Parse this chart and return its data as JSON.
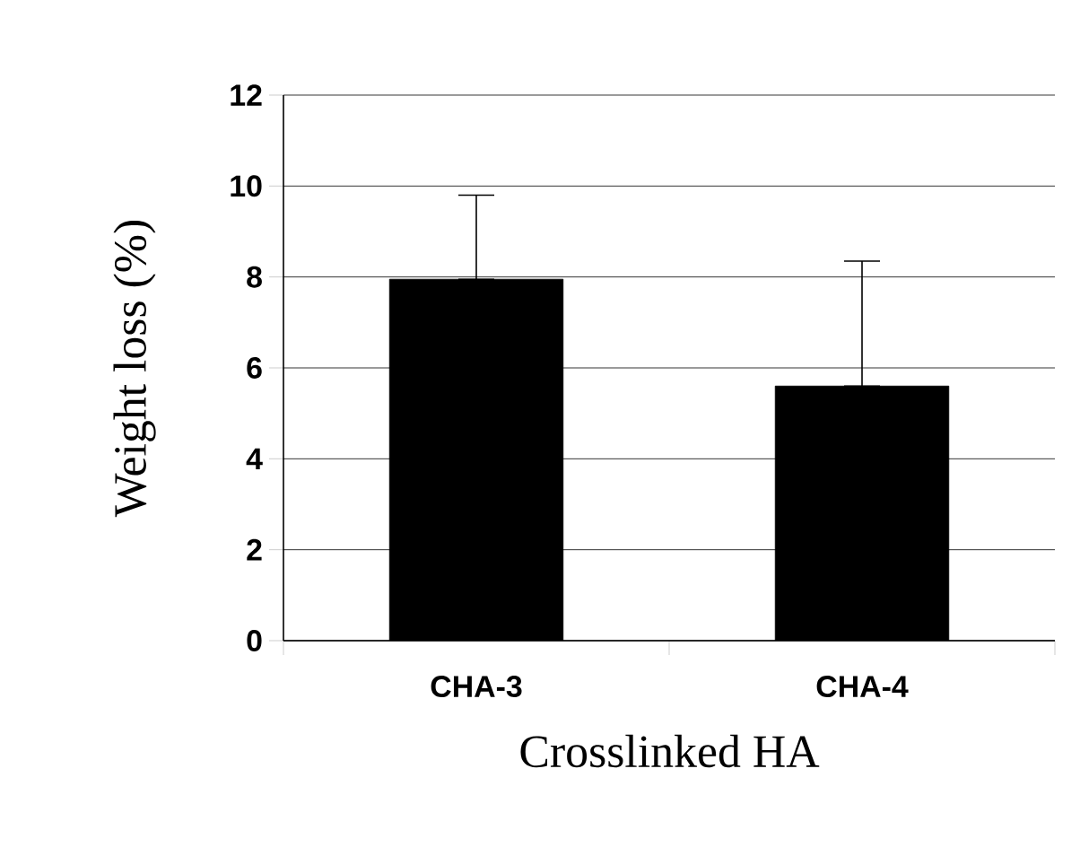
{
  "chart_data": {
    "type": "bar",
    "xlabel": "Crosslinked HA",
    "ylabel": "Weight loss (%)",
    "categories": [
      "CHA-3",
      "CHA-4"
    ],
    "values": [
      7.95,
      5.6
    ],
    "errors": [
      [
        7.95,
        9.8
      ],
      [
        5.6,
        8.35
      ]
    ],
    "color": "#000000",
    "ylim": [
      0,
      12
    ],
    "yticks": [
      0,
      2,
      4,
      6,
      8,
      10,
      12
    ],
    "grid": "y"
  }
}
